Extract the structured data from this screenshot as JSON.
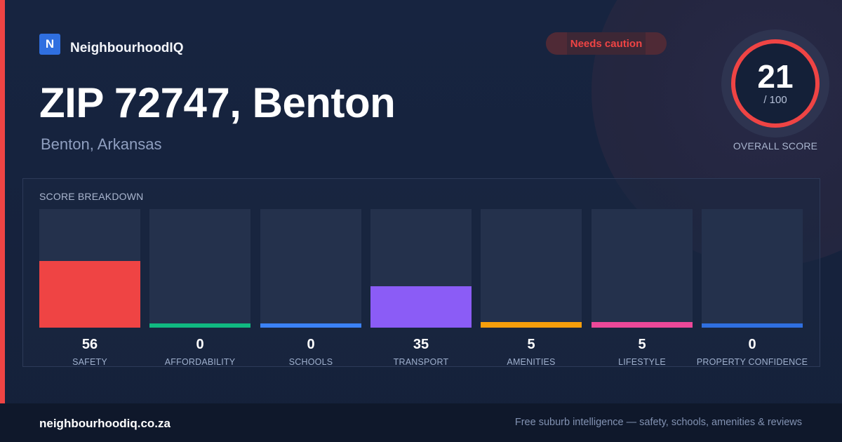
{
  "brand": {
    "logo_letter": "N",
    "name": "NeighbourhoodIQ"
  },
  "location": {
    "title": "ZIP 72747, Benton",
    "subtitle": "Benton, Arkansas"
  },
  "status": {
    "label": "Needs caution",
    "color": "#ef4444"
  },
  "overall": {
    "score": "21",
    "out_of": "/ 100",
    "max": 100,
    "label": "OVERALL SCORE",
    "ring_color": "#ef4444"
  },
  "breakdown": {
    "title": "SCORE BREAKDOWN",
    "items": [
      {
        "key": "safety",
        "label": "SAFETY",
        "value": "56",
        "score": 56,
        "color": "#ef4444"
      },
      {
        "key": "affordability",
        "label": "AFFORDABILITY",
        "value": "0",
        "score": 0,
        "color": "#10b981"
      },
      {
        "key": "schools",
        "label": "SCHOOLS",
        "value": "0",
        "score": 0,
        "color": "#3b82f6"
      },
      {
        "key": "transport",
        "label": "TRANSPORT",
        "value": "35",
        "score": 35,
        "color": "#8b5cf6"
      },
      {
        "key": "amenities",
        "label": "AMENITIES",
        "value": "5",
        "score": 5,
        "color": "#f59e0b"
      },
      {
        "key": "lifestyle",
        "label": "LIFESTYLE",
        "value": "5",
        "score": 5,
        "color": "#ec4899"
      },
      {
        "key": "property-confidence",
        "label": "PROPERTY CONFIDENCE",
        "value": "0",
        "score": 0,
        "color": "#2f6fe0"
      }
    ]
  },
  "footer": {
    "domain": "neighbourhoodiq.co.za",
    "tagline": "Free suburb intelligence — safety, schools, amenities & reviews"
  }
}
